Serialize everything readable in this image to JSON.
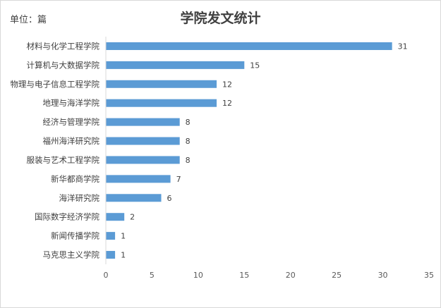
{
  "chart_data": {
    "type": "bar",
    "orientation": "horizontal",
    "title": "学院发文统计",
    "unit_label": "单位：篇",
    "categories": [
      "材料与化学工程学院",
      "计算机与大数据学院",
      "物理与电子信息工程学院",
      "地理与海洋学院",
      "经济与管理学院",
      "福州海洋研究院",
      "服装与艺术工程学院",
      "新华都商学院",
      "海洋研究院",
      "国际数字经济学院",
      "新闻传播学院",
      "马克思主义学院"
    ],
    "values": [
      31,
      15,
      12,
      12,
      8,
      8,
      8,
      7,
      6,
      2,
      1,
      1
    ],
    "xlim": [
      0,
      35
    ],
    "xticks": [
      0,
      5,
      10,
      15,
      20,
      25,
      30,
      35
    ],
    "bar_color": "#5b9bd5",
    "grid": false,
    "legend": "none"
  }
}
